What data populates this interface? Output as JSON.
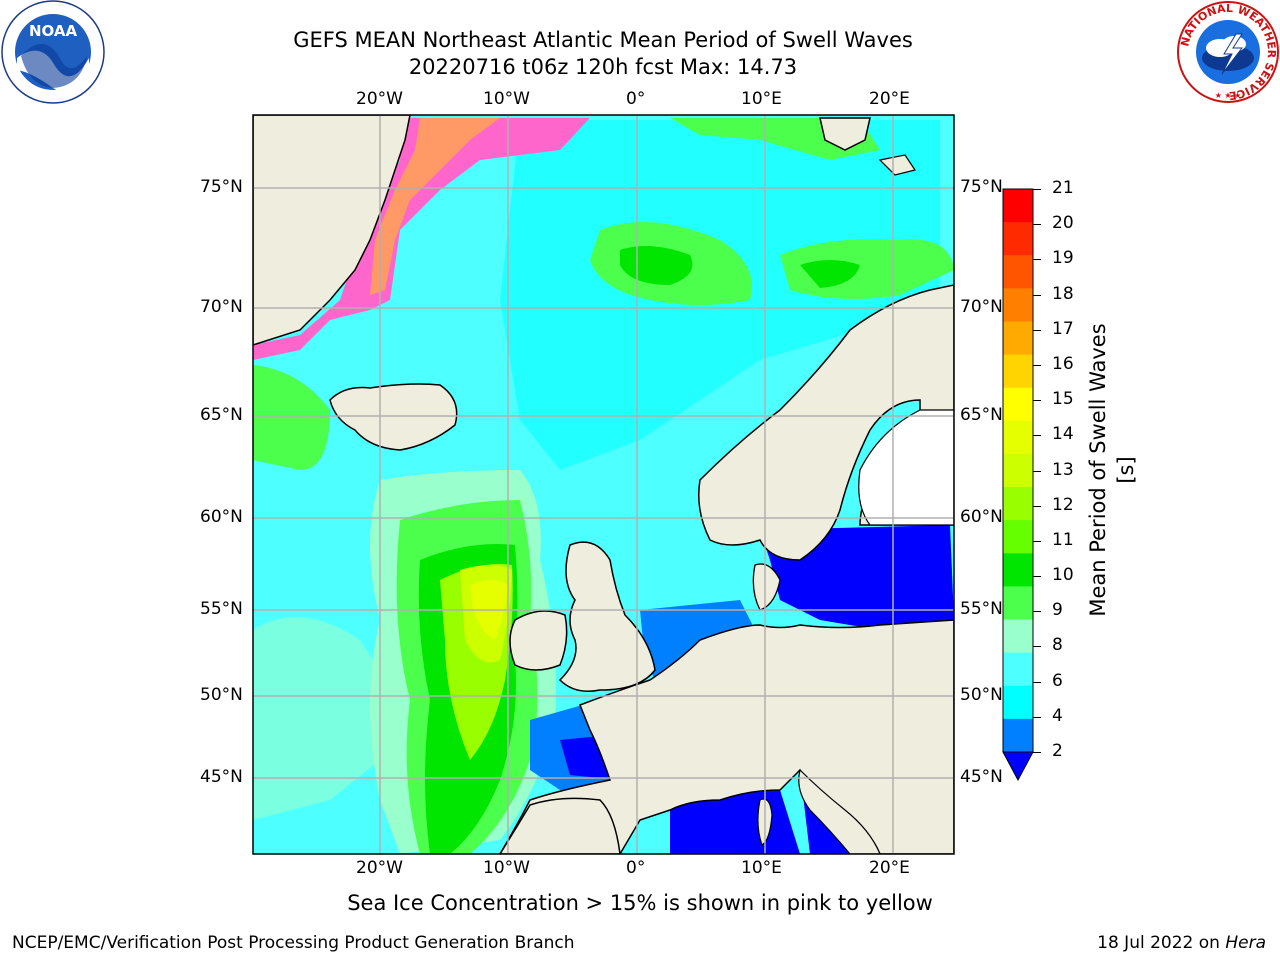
{
  "title": {
    "line1": "GEFS MEAN Northeast Atlantic Mean Period of Swell Waves",
    "line2": "20220716 t06z 120h fcst   Max: 14.73"
  },
  "map": {
    "top_lon_labels": [
      "20°W",
      "10°W",
      "0°",
      "10°E",
      "20°E"
    ],
    "bottom_lon_labels": [
      "20°W",
      "10°W",
      "0°",
      "10°E",
      "20°E"
    ],
    "left_lat_labels": [
      "75°N",
      "70°N",
      "65°N",
      "60°N",
      "55°N",
      "50°N",
      "45°N"
    ],
    "right_lat_labels": [
      "75°N",
      "70°N",
      "65°N",
      "60°N",
      "55°N",
      "50°N",
      "45°N"
    ],
    "ocean_color": "#4dffff",
    "land_color": "#efedde"
  },
  "colorbar": {
    "label": "Mean Period of Swell Waves [s]",
    "ticks": [
      "21",
      "20",
      "19",
      "18",
      "17",
      "16",
      "15",
      "14",
      "13",
      "12",
      "11",
      "10",
      "9",
      "8",
      "6",
      "4",
      "2"
    ],
    "colors": [
      "#ff0000",
      "#ff2a00",
      "#ff5500",
      "#ff8000",
      "#ffaa00",
      "#ffd400",
      "#ffff00",
      "#e6ff00",
      "#ccff00",
      "#99ff00",
      "#66ff00",
      "#00e600",
      "#4dff4d",
      "#99ffcc",
      "#4dffff",
      "#00ffff",
      "#0080ff"
    ],
    "extend_color": "#0000ff"
  },
  "note": "Sea Ice Concentration > 15% is shown in pink to yellow",
  "footer": {
    "left": "NCEP/EMC/Verification Post Processing Product Generation Branch",
    "date": "18 Jul 2022 on ",
    "machine": "Hera"
  },
  "logos": {
    "noaa_text": "NOAA",
    "nws_ring_text": "NATIONAL WEATHER SERVICE"
  }
}
